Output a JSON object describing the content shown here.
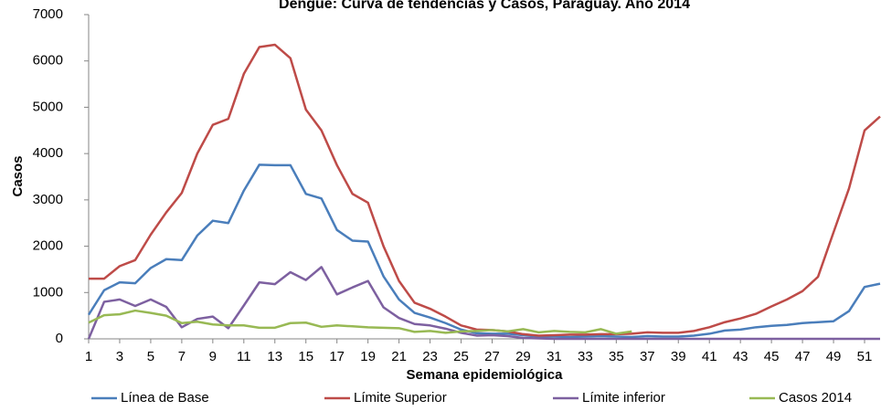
{
  "chart_data": {
    "type": "line",
    "title": "Dengue: Curva de tendencias y Casos, Paraguay. Año 2014",
    "x_label": "Semana epidemiológica",
    "y_label": "Casos",
    "x": [
      1,
      2,
      3,
      4,
      5,
      6,
      7,
      8,
      9,
      10,
      11,
      12,
      13,
      14,
      15,
      16,
      17,
      18,
      19,
      20,
      21,
      22,
      23,
      24,
      25,
      26,
      27,
      28,
      29,
      30,
      31,
      32,
      33,
      34,
      35,
      36,
      37,
      38,
      39,
      40,
      41,
      42,
      43,
      44,
      45,
      46,
      47,
      48,
      49,
      50,
      51,
      52
    ],
    "xlim": [
      1,
      52
    ],
    "xticks": [
      1,
      3,
      5,
      7,
      9,
      11,
      13,
      15,
      17,
      19,
      21,
      23,
      25,
      27,
      29,
      31,
      33,
      35,
      37,
      39,
      41,
      43,
      45,
      47,
      49,
      51
    ],
    "ylim": [
      0,
      7000
    ],
    "yticks": [
      0,
      1000,
      2000,
      3000,
      4000,
      5000,
      6000,
      7000
    ],
    "grid": false,
    "series": [
      {
        "name": "Línea de Base",
        "color": "#4a7ebb",
        "values": [
          520,
          1050,
          1220,
          1200,
          1530,
          1720,
          1700,
          2230,
          2550,
          2500,
          3200,
          3760,
          3750,
          3750,
          3130,
          3030,
          2350,
          2120,
          2100,
          1350,
          850,
          560,
          460,
          340,
          200,
          120,
          110,
          110,
          80,
          50,
          50,
          40,
          50,
          60,
          50,
          40,
          60,
          50,
          50,
          70,
          110,
          180,
          200,
          250,
          280,
          300,
          340,
          360,
          380,
          600,
          1120,
          1190
        ]
      },
      {
        "name": "Límite Superior",
        "color": "#be4b48",
        "values": [
          1300,
          1300,
          1570,
          1700,
          2250,
          2730,
          3150,
          4000,
          4620,
          4750,
          5720,
          6300,
          6350,
          6060,
          4950,
          4500,
          3750,
          3130,
          2940,
          2000,
          1250,
          780,
          650,
          480,
          290,
          200,
          190,
          160,
          100,
          70,
          80,
          90,
          90,
          100,
          100,
          110,
          140,
          130,
          130,
          170,
          250,
          360,
          440,
          540,
          700,
          850,
          1030,
          1340,
          2300,
          3250,
          4500,
          4800
        ]
      },
      {
        "name": "Límite inferior",
        "color": "#7d60a0",
        "values": [
          0,
          800,
          850,
          710,
          850,
          690,
          250,
          430,
          480,
          230,
          720,
          1220,
          1180,
          1440,
          1270,
          1550,
          960,
          1110,
          1250,
          680,
          450,
          320,
          290,
          220,
          130,
          70,
          80,
          60,
          20,
          10,
          0,
          0,
          0,
          0,
          0,
          0,
          0,
          0,
          0,
          0,
          0,
          0,
          0,
          0,
          0,
          0,
          0,
          0,
          0,
          0,
          0,
          0
        ]
      },
      {
        "name": "Casos 2014",
        "color": "#98b954",
        "values": [
          350,
          510,
          530,
          610,
          560,
          500,
          340,
          370,
          310,
          290,
          290,
          240,
          240,
          340,
          350,
          260,
          290,
          270,
          250,
          240,
          230,
          150,
          170,
          130,
          160,
          170,
          190,
          160,
          210,
          140,
          170,
          150,
          140,
          210,
          110,
          160,
          null,
          null,
          null,
          null,
          null,
          null,
          null,
          null,
          null,
          null,
          null,
          null,
          null,
          null,
          null,
          null
        ]
      }
    ]
  }
}
